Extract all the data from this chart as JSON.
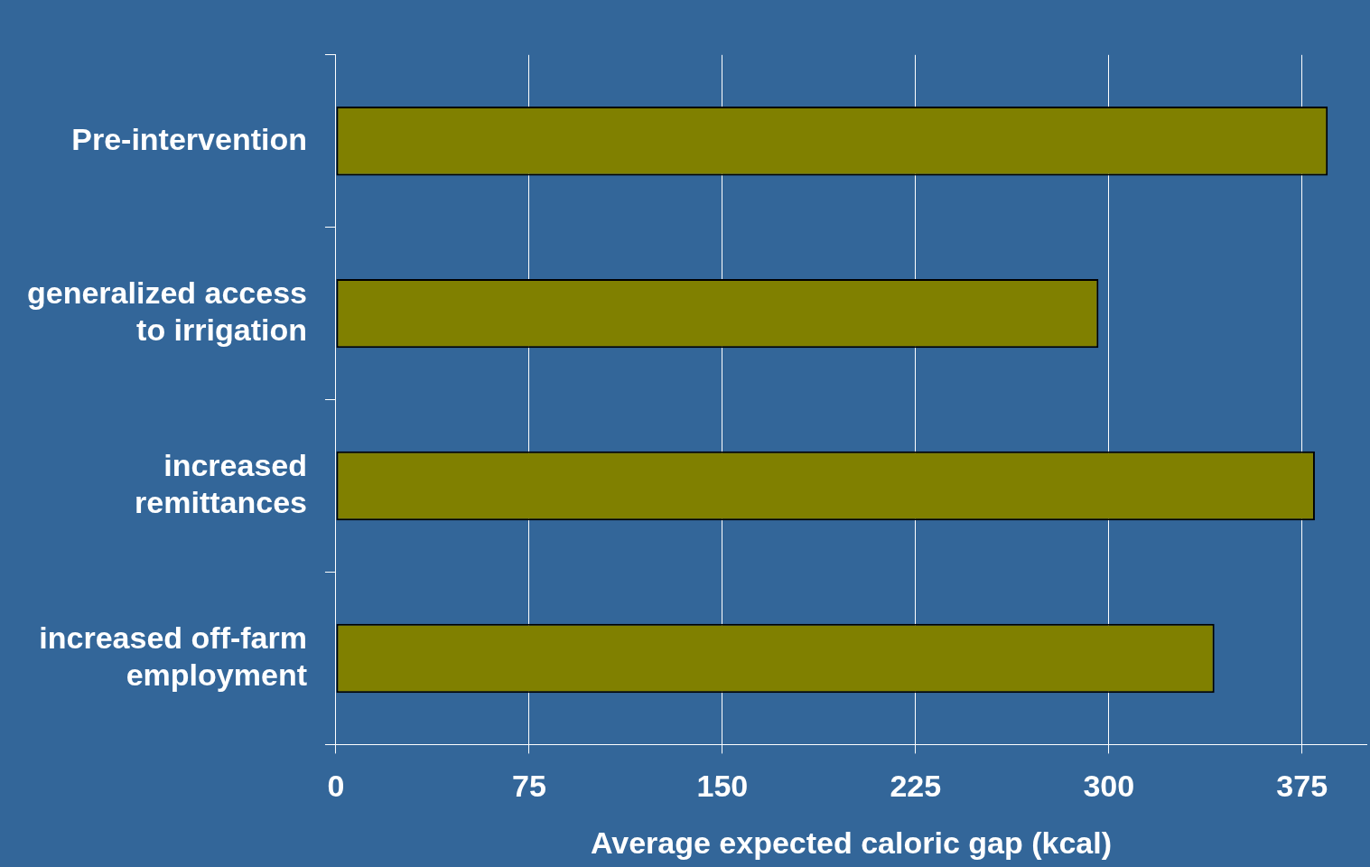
{
  "chart_data": {
    "type": "bar",
    "orientation": "horizontal",
    "xlabel": "Average expected caloric gap (kcal)",
    "categories": [
      "Pre-intervention",
      "generalized access to irrigation",
      "increased remittances",
      "increased off-farm employment"
    ],
    "values": [
      385,
      296,
      380,
      341
    ],
    "color": "#808000",
    "xlim": [
      0,
      400
    ],
    "xticks": [
      0,
      75,
      150,
      225,
      300,
      375
    ],
    "grid": "x",
    "legend": false
  }
}
